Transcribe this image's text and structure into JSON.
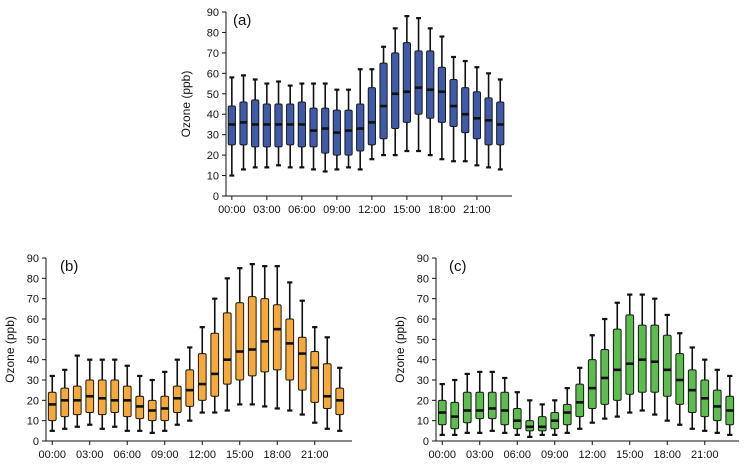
{
  "chart_data": [
    {
      "type": "box",
      "panel_label": "(a)",
      "ylabel": "Ozone (ppb)",
      "xlabel": "",
      "ylim": [
        0,
        90
      ],
      "y_ticks": [
        0,
        10,
        20,
        30,
        40,
        50,
        60,
        70,
        80,
        90
      ],
      "x_tick_labels": [
        "00:00",
        "03:00",
        "06:00",
        "09:00",
        "12:00",
        "15:00",
        "18:00",
        "21:00"
      ],
      "x_tick_hours": [
        0,
        3,
        6,
        9,
        12,
        15,
        18,
        21
      ],
      "color": "#3f5aa8",
      "boxes": [
        {
          "hour": 0,
          "whisker_low": 10,
          "q1": 25,
          "median": 35,
          "q3": 44,
          "whisker_high": 58
        },
        {
          "hour": 1,
          "whisker_low": 13,
          "q1": 25,
          "median": 36,
          "q3": 46,
          "whisker_high": 59
        },
        {
          "hour": 2,
          "whisker_low": 14,
          "q1": 24,
          "median": 35,
          "q3": 47,
          "whisker_high": 57
        },
        {
          "hour": 3,
          "whisker_low": 14,
          "q1": 24,
          "median": 35,
          "q3": 45,
          "whisker_high": 55
        },
        {
          "hour": 4,
          "whisker_low": 15,
          "q1": 24,
          "median": 35,
          "q3": 45,
          "whisker_high": 56
        },
        {
          "hour": 5,
          "whisker_low": 14,
          "q1": 25,
          "median": 35,
          "q3": 45,
          "whisker_high": 54
        },
        {
          "hour": 6,
          "whisker_low": 14,
          "q1": 24,
          "median": 35,
          "q3": 46,
          "whisker_high": 55
        },
        {
          "hour": 7,
          "whisker_low": 13,
          "q1": 24,
          "median": 32,
          "q3": 43,
          "whisker_high": 55
        },
        {
          "hour": 8,
          "whisker_low": 12,
          "q1": 21,
          "median": 33,
          "q3": 43,
          "whisker_high": 55
        },
        {
          "hour": 9,
          "whisker_low": 13,
          "q1": 20,
          "median": 31,
          "q3": 42,
          "whisker_high": 52
        },
        {
          "hour": 10,
          "whisker_low": 14,
          "q1": 20,
          "median": 32,
          "q3": 42,
          "whisker_high": 52
        },
        {
          "hour": 11,
          "whisker_low": 13,
          "q1": 22,
          "median": 33,
          "q3": 45,
          "whisker_high": 62
        },
        {
          "hour": 12,
          "whisker_low": 18,
          "q1": 25,
          "median": 36,
          "q3": 53,
          "whisker_high": 62
        },
        {
          "hour": 13,
          "whisker_low": 20,
          "q1": 28,
          "median": 44,
          "q3": 65,
          "whisker_high": 73
        },
        {
          "hour": 14,
          "whisker_low": 20,
          "q1": 33,
          "median": 50,
          "q3": 70,
          "whisker_high": 82
        },
        {
          "hour": 15,
          "whisker_low": 22,
          "q1": 36,
          "median": 51,
          "q3": 75,
          "whisker_high": 88
        },
        {
          "hour": 16,
          "whisker_low": 22,
          "q1": 40,
          "median": 53,
          "q3": 71,
          "whisker_high": 87
        },
        {
          "hour": 17,
          "whisker_low": 20,
          "q1": 38,
          "median": 52,
          "q3": 71,
          "whisker_high": 82
        },
        {
          "hour": 18,
          "whisker_low": 18,
          "q1": 36,
          "median": 51,
          "q3": 63,
          "whisker_high": 78
        },
        {
          "hour": 19,
          "whisker_low": 17,
          "q1": 34,
          "median": 44,
          "q3": 57,
          "whisker_high": 68
        },
        {
          "hour": 20,
          "whisker_low": 17,
          "q1": 31,
          "median": 40,
          "q3": 53,
          "whisker_high": 66
        },
        {
          "hour": 21,
          "whisker_low": 15,
          "q1": 28,
          "median": 38,
          "q3": 51,
          "whisker_high": 63
        },
        {
          "hour": 22,
          "whisker_low": 14,
          "q1": 25,
          "median": 37,
          "q3": 48,
          "whisker_high": 60
        },
        {
          "hour": 23,
          "whisker_low": 13,
          "q1": 25,
          "median": 35,
          "q3": 46,
          "whisker_high": 57
        }
      ]
    },
    {
      "type": "box",
      "panel_label": "(b)",
      "ylabel": "Ozone (ppb)",
      "xlabel": "",
      "ylim": [
        0,
        90
      ],
      "y_ticks": [
        0,
        10,
        20,
        30,
        40,
        50,
        60,
        70,
        80,
        90
      ],
      "x_tick_labels": [
        "00:00",
        "03:00",
        "06:00",
        "09:00",
        "12:00",
        "15:00",
        "18:00",
        "21:00"
      ],
      "x_tick_hours": [
        0,
        3,
        6,
        9,
        12,
        15,
        18,
        21
      ],
      "color": "#f5a93a",
      "boxes": [
        {
          "hour": 0,
          "whisker_low": 5,
          "q1": 10,
          "median": 18,
          "q3": 24,
          "whisker_high": 32
        },
        {
          "hour": 1,
          "whisker_low": 6,
          "q1": 12,
          "median": 20,
          "q3": 26,
          "whisker_high": 35
        },
        {
          "hour": 2,
          "whisker_low": 7,
          "q1": 13,
          "median": 20,
          "q3": 27,
          "whisker_high": 42
        },
        {
          "hour": 3,
          "whisker_low": 8,
          "q1": 14,
          "median": 22,
          "q3": 30,
          "whisker_high": 40
        },
        {
          "hour": 4,
          "whisker_low": 6,
          "q1": 13,
          "median": 21,
          "q3": 30,
          "whisker_high": 40
        },
        {
          "hour": 5,
          "whisker_low": 7,
          "q1": 14,
          "median": 20,
          "q3": 30,
          "whisker_high": 40
        },
        {
          "hour": 6,
          "whisker_low": 5,
          "q1": 12,
          "median": 20,
          "q3": 27,
          "whisker_high": 37
        },
        {
          "hour": 7,
          "whisker_low": 5,
          "q1": 11,
          "median": 17,
          "q3": 22,
          "whisker_high": 32
        },
        {
          "hour": 8,
          "whisker_low": 4,
          "q1": 10,
          "median": 15,
          "q3": 20,
          "whisker_high": 30
        },
        {
          "hour": 9,
          "whisker_low": 5,
          "q1": 10,
          "median": 16,
          "q3": 22,
          "whisker_high": 34
        },
        {
          "hour": 10,
          "whisker_low": 8,
          "q1": 14,
          "median": 21,
          "q3": 27,
          "whisker_high": 40
        },
        {
          "hour": 11,
          "whisker_low": 10,
          "q1": 17,
          "median": 25,
          "q3": 35,
          "whisker_high": 46
        },
        {
          "hour": 12,
          "whisker_low": 14,
          "q1": 20,
          "median": 28,
          "q3": 43,
          "whisker_high": 56
        },
        {
          "hour": 13,
          "whisker_low": 14,
          "q1": 22,
          "median": 33,
          "q3": 53,
          "whisker_high": 70
        },
        {
          "hour": 14,
          "whisker_low": 15,
          "q1": 28,
          "median": 40,
          "q3": 63,
          "whisker_high": 80
        },
        {
          "hour": 15,
          "whisker_low": 18,
          "q1": 30,
          "median": 44,
          "q3": 68,
          "whisker_high": 85
        },
        {
          "hour": 16,
          "whisker_low": 18,
          "q1": 32,
          "median": 45,
          "q3": 71,
          "whisker_high": 87
        },
        {
          "hour": 17,
          "whisker_low": 17,
          "q1": 34,
          "median": 49,
          "q3": 70,
          "whisker_high": 86
        },
        {
          "hour": 18,
          "whisker_low": 16,
          "q1": 35,
          "median": 55,
          "q3": 67,
          "whisker_high": 86
        },
        {
          "hour": 19,
          "whisker_low": 15,
          "q1": 30,
          "median": 48,
          "q3": 60,
          "whisker_high": 78
        },
        {
          "hour": 20,
          "whisker_low": 13,
          "q1": 25,
          "median": 43,
          "q3": 51,
          "whisker_high": 69
        },
        {
          "hour": 21,
          "whisker_low": 9,
          "q1": 19,
          "median": 36,
          "q3": 44,
          "whisker_high": 56
        },
        {
          "hour": 22,
          "whisker_low": 6,
          "q1": 16,
          "median": 22,
          "q3": 38,
          "whisker_high": 51
        },
        {
          "hour": 23,
          "whisker_low": 5,
          "q1": 13,
          "median": 20,
          "q3": 26,
          "whisker_high": 36
        }
      ]
    },
    {
      "type": "box",
      "panel_label": "(c)",
      "ylabel": "Ozone (ppb)",
      "xlabel": "",
      "ylim": [
        0,
        90
      ],
      "y_ticks": [
        0,
        10,
        20,
        30,
        40,
        50,
        60,
        70,
        80,
        90
      ],
      "x_tick_labels": [
        "00:00",
        "03:00",
        "06:00",
        "09:00",
        "12:00",
        "15:00",
        "18:00",
        "21:00"
      ],
      "x_tick_hours": [
        0,
        3,
        6,
        9,
        12,
        15,
        18,
        21
      ],
      "color": "#5cbc4e",
      "boxes": [
        {
          "hour": 0,
          "whisker_low": 3,
          "q1": 8,
          "median": 14,
          "q3": 20,
          "whisker_high": 28
        },
        {
          "hour": 1,
          "whisker_low": 3,
          "q1": 6,
          "median": 12,
          "q3": 19,
          "whisker_high": 30
        },
        {
          "hour": 2,
          "whisker_low": 4,
          "q1": 9,
          "median": 15,
          "q3": 24,
          "whisker_high": 33
        },
        {
          "hour": 3,
          "whisker_low": 4,
          "q1": 11,
          "median": 15,
          "q3": 24,
          "whisker_high": 34
        },
        {
          "hour": 4,
          "whisker_low": 5,
          "q1": 11,
          "median": 16,
          "q3": 24,
          "whisker_high": 34
        },
        {
          "hour": 5,
          "whisker_low": 4,
          "q1": 8,
          "median": 15,
          "q3": 24,
          "whisker_high": 31
        },
        {
          "hour": 6,
          "whisker_low": 3,
          "q1": 6,
          "median": 10,
          "q3": 16,
          "whisker_high": 24
        },
        {
          "hour": 7,
          "whisker_low": 2,
          "q1": 5,
          "median": 7,
          "q3": 10,
          "whisker_high": 20
        },
        {
          "hour": 8,
          "whisker_low": 3,
          "q1": 5,
          "median": 7,
          "q3": 12,
          "whisker_high": 18
        },
        {
          "hour": 9,
          "whisker_low": 3,
          "q1": 6,
          "median": 10,
          "q3": 14,
          "whisker_high": 20
        },
        {
          "hour": 10,
          "whisker_low": 4,
          "q1": 8,
          "median": 14,
          "q3": 18,
          "whisker_high": 26
        },
        {
          "hour": 11,
          "whisker_low": 6,
          "q1": 12,
          "median": 19,
          "q3": 28,
          "whisker_high": 36
        },
        {
          "hour": 12,
          "whisker_low": 9,
          "q1": 16,
          "median": 26,
          "q3": 40,
          "whisker_high": 52
        },
        {
          "hour": 13,
          "whisker_low": 11,
          "q1": 18,
          "median": 31,
          "q3": 45,
          "whisker_high": 60
        },
        {
          "hour": 14,
          "whisker_low": 12,
          "q1": 20,
          "median": 35,
          "q3": 55,
          "whisker_high": 68
        },
        {
          "hour": 15,
          "whisker_low": 14,
          "q1": 23,
          "median": 38,
          "q3": 62,
          "whisker_high": 72
        },
        {
          "hour": 16,
          "whisker_low": 15,
          "q1": 24,
          "median": 40,
          "q3": 57,
          "whisker_high": 72
        },
        {
          "hour": 17,
          "whisker_low": 13,
          "q1": 24,
          "median": 39,
          "q3": 57,
          "whisker_high": 70
        },
        {
          "hour": 18,
          "whisker_low": 10,
          "q1": 22,
          "median": 35,
          "q3": 52,
          "whisker_high": 62
        },
        {
          "hour": 19,
          "whisker_low": 8,
          "q1": 18,
          "median": 30,
          "q3": 43,
          "whisker_high": 53
        },
        {
          "hour": 20,
          "whisker_low": 6,
          "q1": 14,
          "median": 25,
          "q3": 35,
          "whisker_high": 46
        },
        {
          "hour": 21,
          "whisker_low": 5,
          "q1": 12,
          "median": 21,
          "q3": 30,
          "whisker_high": 40
        },
        {
          "hour": 22,
          "whisker_low": 4,
          "q1": 10,
          "median": 17,
          "q3": 25,
          "whisker_high": 35
        },
        {
          "hour": 23,
          "whisker_low": 3,
          "q1": 8,
          "median": 15,
          "q3": 22,
          "whisker_high": 32
        }
      ]
    }
  ]
}
